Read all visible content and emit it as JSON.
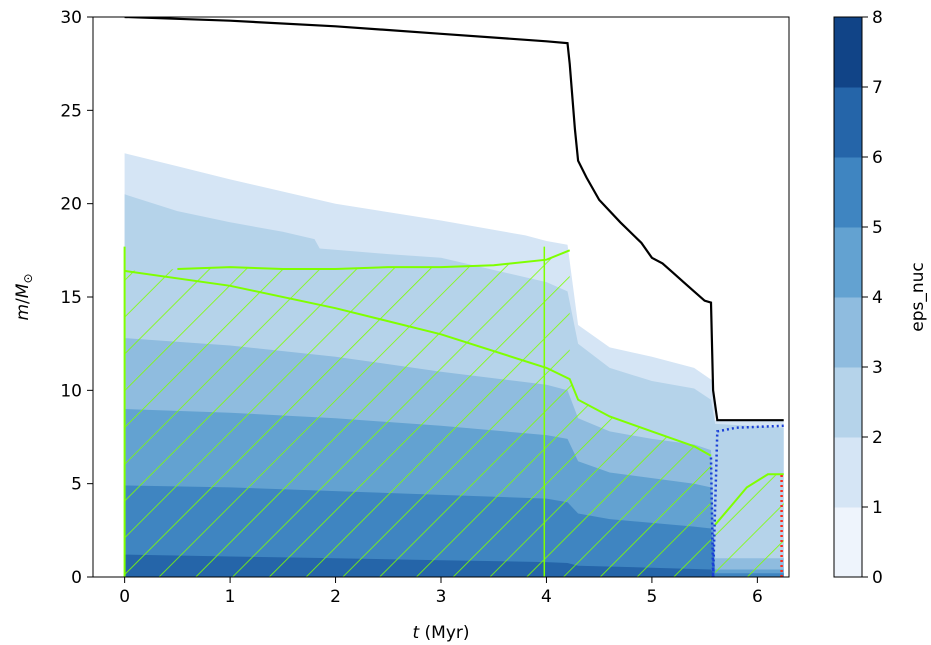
{
  "chart_data": {
    "type": "kippenhahn",
    "xlabel_italic": "t",
    "xlabel_unit": " (Myr)",
    "ylabel_italic": "m",
    "ylabel_mid": "/",
    "ylabel_M": "M",
    "ylabel_sub": "⊙",
    "xlim": [
      -0.3,
      6.3
    ],
    "ylim": [
      0,
      30
    ],
    "xticks": [
      0,
      1,
      2,
      3,
      4,
      5,
      6
    ],
    "yticks": [
      0,
      5,
      10,
      15,
      20,
      25,
      30
    ],
    "colorbar": {
      "label": "eps_nuc",
      "ticks": [
        0,
        1,
        2,
        3,
        4,
        5,
        6,
        7,
        8
      ],
      "colors": [
        "#eef4fc",
        "#d5e5f5",
        "#b5d3ea",
        "#8fbcdf",
        "#63a2d1",
        "#3f85c1",
        "#2565a9",
        "#114487"
      ]
    },
    "levels": [
      {
        "level": 1,
        "boundary": [
          [
            0,
            22.7
          ],
          [
            0.5,
            22.0
          ],
          [
            1,
            21.3
          ],
          [
            2,
            20.0
          ],
          [
            3,
            19.1
          ],
          [
            3.8,
            18.3
          ],
          [
            4.0,
            18.0
          ],
          [
            4.2,
            17.8
          ],
          [
            4.3,
            13.5
          ],
          [
            4.6,
            12.3
          ],
          [
            5.0,
            11.8
          ],
          [
            5.4,
            11.2
          ],
          [
            5.58,
            10.5
          ],
          [
            5.6,
            8.4
          ],
          [
            6.25,
            8.4
          ]
        ]
      },
      {
        "level": 2,
        "boundary": [
          [
            0,
            20.5
          ],
          [
            0.5,
            19.6
          ],
          [
            1,
            19.0
          ],
          [
            1.5,
            18.5
          ],
          [
            1.8,
            18.1
          ],
          [
            1.85,
            17.6
          ],
          [
            2.5,
            17.3
          ],
          [
            3,
            17.1
          ],
          [
            4,
            15.8
          ],
          [
            4.2,
            15.3
          ],
          [
            4.3,
            12.5
          ],
          [
            4.6,
            11.2
          ],
          [
            5.0,
            10.5
          ],
          [
            5.4,
            10.1
          ],
          [
            5.56,
            9.5
          ],
          [
            5.6,
            8.2
          ],
          [
            6.25,
            8.0
          ]
        ]
      },
      {
        "level": 3,
        "boundary": [
          [
            0,
            12.8
          ],
          [
            1,
            12.4
          ],
          [
            2,
            11.8
          ],
          [
            3,
            11.0
          ],
          [
            4,
            10.3
          ],
          [
            4.2,
            10.0
          ],
          [
            4.3,
            8.5
          ],
          [
            4.6,
            7.8
          ],
          [
            5.0,
            7.4
          ],
          [
            5.4,
            7.1
          ],
          [
            5.56,
            6.8
          ],
          [
            5.6,
            1.0
          ],
          [
            6.25,
            1.0
          ]
        ]
      },
      {
        "level": 4,
        "boundary": [
          [
            0,
            9.0
          ],
          [
            1,
            8.8
          ],
          [
            2,
            8.5
          ],
          [
            3,
            8.1
          ],
          [
            4,
            7.6
          ],
          [
            4.2,
            7.4
          ],
          [
            4.3,
            6.2
          ],
          [
            4.6,
            5.6
          ],
          [
            5.0,
            5.3
          ],
          [
            5.4,
            5.0
          ],
          [
            5.56,
            4.8
          ],
          [
            5.6,
            0.4
          ],
          [
            6.25,
            0.4
          ]
        ]
      },
      {
        "level": 5,
        "boundary": [
          [
            0,
            4.9
          ],
          [
            1,
            4.8
          ],
          [
            2,
            4.6
          ],
          [
            3,
            4.4
          ],
          [
            4,
            4.2
          ],
          [
            4.2,
            4.0
          ],
          [
            4.3,
            3.4
          ],
          [
            4.6,
            3.1
          ],
          [
            5.0,
            2.9
          ],
          [
            5.4,
            2.7
          ],
          [
            5.56,
            2.6
          ],
          [
            5.6,
            0.2
          ],
          [
            6.25,
            0.2
          ]
        ]
      },
      {
        "level": 6,
        "boundary": [
          [
            0,
            1.2
          ],
          [
            1,
            1.1
          ],
          [
            2,
            1.0
          ],
          [
            3,
            0.9
          ],
          [
            4,
            0.8
          ],
          [
            4.2,
            0.75
          ],
          [
            4.3,
            0.6
          ],
          [
            5.0,
            0.5
          ],
          [
            5.56,
            0.4
          ],
          [
            5.6,
            0.0
          ],
          [
            6.25,
            0.0
          ]
        ]
      }
    ],
    "total_mass": {
      "color": "#000000",
      "points": [
        [
          0,
          30.0
        ],
        [
          1,
          29.8
        ],
        [
          2,
          29.5
        ],
        [
          3,
          29.1
        ],
        [
          4,
          28.7
        ],
        [
          4.2,
          28.6
        ],
        [
          4.22,
          27.5
        ],
        [
          4.27,
          24.0
        ],
        [
          4.3,
          22.3
        ],
        [
          4.38,
          21.4
        ],
        [
          4.5,
          20.2
        ],
        [
          4.7,
          19.0
        ],
        [
          4.9,
          17.9
        ],
        [
          5.0,
          17.1
        ],
        [
          5.1,
          16.8
        ],
        [
          5.2,
          16.3
        ],
        [
          5.3,
          15.8
        ],
        [
          5.4,
          15.3
        ],
        [
          5.5,
          14.8
        ],
        [
          5.56,
          14.7
        ],
        [
          5.58,
          10.0
        ],
        [
          5.62,
          8.4
        ],
        [
          6.25,
          8.4
        ]
      ]
    },
    "convective_core_boundary": {
      "color": "#7fff00",
      "points": [
        [
          0,
          16.4
        ],
        [
          1,
          15.6
        ],
        [
          2,
          14.4
        ],
        [
          3,
          13.0
        ],
        [
          4,
          11.2
        ],
        [
          4.22,
          10.6
        ],
        [
          4.3,
          9.5
        ],
        [
          4.6,
          8.6
        ],
        [
          5.0,
          7.8
        ],
        [
          5.4,
          7.0
        ],
        [
          5.56,
          6.5
        ]
      ]
    },
    "upper_convective_zone": {
      "color": "#7fff00",
      "points": [
        [
          0.5,
          16.5
        ],
        [
          1,
          16.6
        ],
        [
          1.5,
          16.5
        ],
        [
          2,
          16.5
        ],
        [
          2.5,
          16.6
        ],
        [
          3,
          16.6
        ],
        [
          3.5,
          16.7
        ],
        [
          4,
          17.0
        ],
        [
          4.22,
          17.5
        ]
      ]
    },
    "late_convection": {
      "color": "#7fff00",
      "points": [
        [
          5.6,
          2.8
        ],
        [
          5.75,
          3.8
        ],
        [
          5.9,
          4.8
        ],
        [
          6.1,
          5.5
        ],
        [
          6.25,
          5.5
        ]
      ]
    },
    "blue_dotted": {
      "color": "#1a3fd6",
      "points": [
        [
          5.56,
          6.4
        ],
        [
          5.58,
          0.0
        ],
        [
          5.62,
          7.8
        ],
        [
          5.8,
          8.0
        ],
        [
          6.25,
          8.1
        ]
      ]
    },
    "red_dotted": {
      "color": "#ff2a1a",
      "points": [
        [
          6.23,
          0.0
        ],
        [
          6.23,
          5.5
        ]
      ]
    }
  }
}
